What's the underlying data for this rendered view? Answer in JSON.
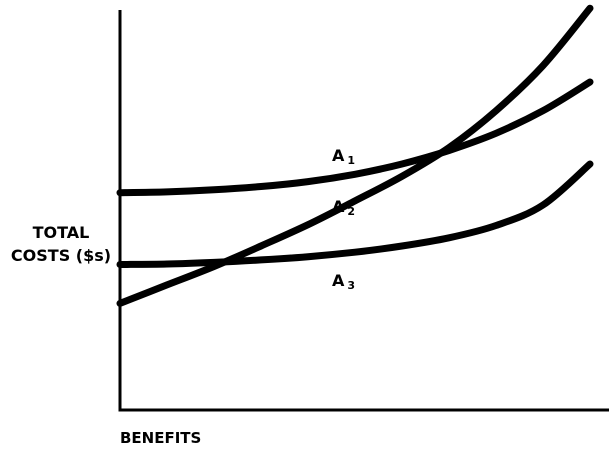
{
  "chart_data": {
    "type": "line",
    "title": "",
    "xlabel": "BENEFITS",
    "ylabel_lines": [
      "TOTAL",
      "COSTS ($s)"
    ],
    "x_ticks": [],
    "y_ticks": [],
    "grid": false,
    "legend": "none",
    "xlim": [
      0,
      1
    ],
    "ylim": [
      0,
      1
    ],
    "series": [
      {
        "name": "A1",
        "label_base": "A",
        "label_sub": "1",
        "color": "#000000",
        "x": [
          0,
          0.1,
          0.2,
          0.3,
          0.4,
          0.5,
          0.6,
          0.7,
          0.8,
          0.9,
          1.0
        ],
        "y": [
          0.53,
          0.532,
          0.537,
          0.545,
          0.557,
          0.575,
          0.6,
          0.633,
          0.675,
          0.73,
          0.8
        ]
      },
      {
        "name": "A2",
        "label_base": "A",
        "label_sub": "2",
        "color": "#000000",
        "x": [
          0,
          0.1,
          0.2,
          0.3,
          0.4,
          0.5,
          0.6,
          0.7,
          0.8,
          0.9,
          1.0
        ],
        "y": [
          0.26,
          0.305,
          0.35,
          0.4,
          0.452,
          0.51,
          0.57,
          0.64,
          0.73,
          0.84,
          0.98
        ]
      },
      {
        "name": "A3",
        "label_base": "A",
        "label_sub": "3",
        "color": "#000000",
        "x": [
          0,
          0.1,
          0.2,
          0.3,
          0.4,
          0.5,
          0.6,
          0.7,
          0.8,
          0.9,
          1.0
        ],
        "y": [
          0.355,
          0.356,
          0.36,
          0.366,
          0.374,
          0.385,
          0.4,
          0.42,
          0.45,
          0.5,
          0.6
        ]
      }
    ]
  }
}
